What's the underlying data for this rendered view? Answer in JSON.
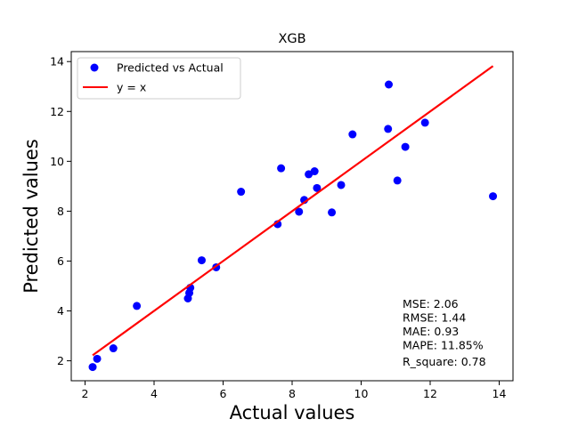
{
  "chart_data": {
    "type": "scatter",
    "title": "XGB",
    "xlabel": "Actual values",
    "ylabel": "Predicted values",
    "xlim": [
      1.6,
      14.4
    ],
    "ylim": [
      1.2,
      14.4
    ],
    "xticks": [
      2,
      4,
      6,
      8,
      10,
      12,
      14
    ],
    "yticks": [
      2,
      4,
      6,
      8,
      10,
      12,
      14
    ],
    "grid": false,
    "legend_position": "upper-left",
    "series": [
      {
        "name": "Predicted vs Actual",
        "kind": "scatter",
        "color": "#0000ff",
        "points": [
          [
            2.22,
            1.75
          ],
          [
            2.35,
            2.08
          ],
          [
            2.82,
            2.5
          ],
          [
            3.5,
            4.2
          ],
          [
            4.98,
            4.5
          ],
          [
            5.02,
            4.72
          ],
          [
            5.05,
            4.93
          ],
          [
            5.38,
            6.03
          ],
          [
            5.8,
            5.75
          ],
          [
            6.52,
            8.78
          ],
          [
            7.58,
            7.48
          ],
          [
            7.68,
            9.72
          ],
          [
            8.2,
            7.98
          ],
          [
            8.35,
            8.45
          ],
          [
            8.48,
            9.48
          ],
          [
            8.65,
            9.6
          ],
          [
            8.72,
            8.93
          ],
          [
            9.15,
            7.95
          ],
          [
            9.42,
            9.05
          ],
          [
            9.75,
            11.08
          ],
          [
            10.78,
            11.3
          ],
          [
            10.8,
            13.08
          ],
          [
            11.05,
            9.23
          ],
          [
            11.28,
            10.58
          ],
          [
            11.85,
            11.55
          ],
          [
            13.82,
            8.6
          ]
        ]
      },
      {
        "name": "y = x",
        "kind": "line",
        "color": "#ff0000",
        "points": [
          [
            2.22,
            2.22
          ],
          [
            13.82,
            13.82
          ]
        ]
      }
    ],
    "annotation_lines": [
      "MSE: 2.06",
      "RMSE: 1.44",
      "MAE: 0.93",
      "MAPE: 11.85%",
      "R_square: 0.78"
    ]
  }
}
